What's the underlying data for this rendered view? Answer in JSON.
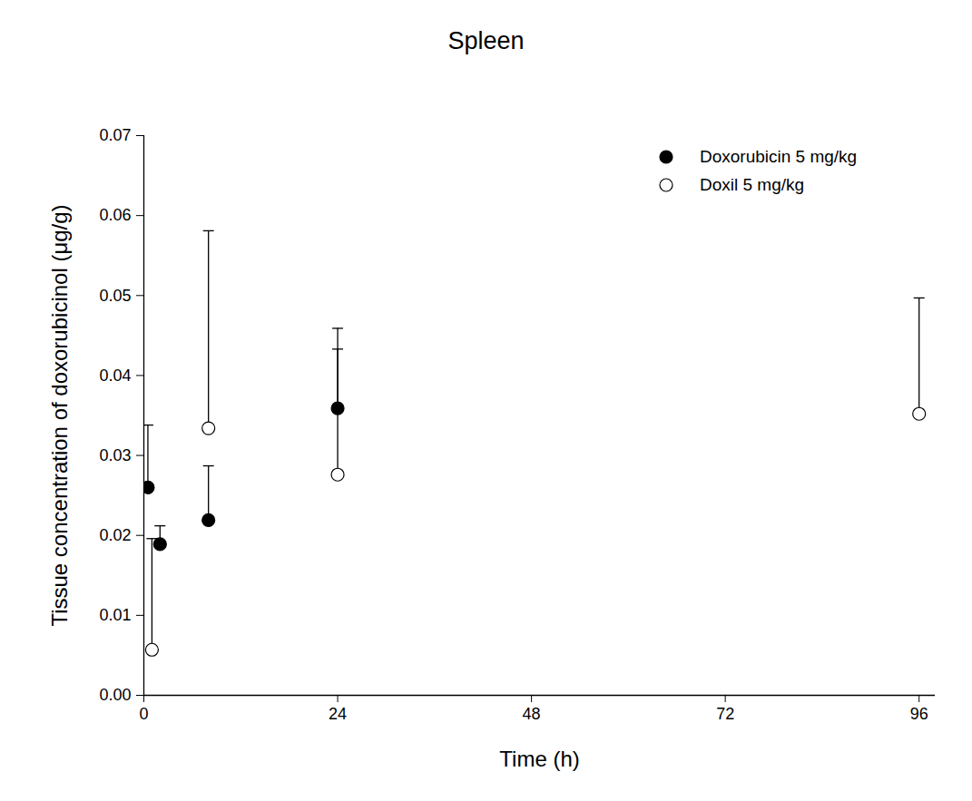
{
  "chart_data": {
    "type": "scatter",
    "title": "Spleen",
    "x_label": "Time (h)",
    "y_label": "Tissue concentration of doxorubicinol (μg/g)",
    "xlim": [
      0,
      98
    ],
    "xticks": [
      0,
      24,
      48,
      72,
      96
    ],
    "ylim": [
      0,
      0.07
    ],
    "yticks": [
      {
        "value": 0,
        "label": "0.00"
      },
      {
        "value": 0.01,
        "label": "0.01"
      },
      {
        "value": 0.02,
        "label": "0.02"
      },
      {
        "value": 0.03,
        "label": "0.03"
      },
      {
        "value": 0.04,
        "label": "0.04"
      },
      {
        "value": 0.05,
        "label": "0.05"
      },
      {
        "value": 0.06,
        "label": "0.06"
      },
      {
        "value": 0.07,
        "label": "0.07"
      }
    ],
    "legend": "top-right",
    "series": [
      {
        "name": "Doxorubicin 5 mg/kg",
        "color": "#000000",
        "marker": "filled_circle",
        "x": [
          0.5,
          2,
          8,
          24
        ],
        "values": [
          0.026,
          0.0189,
          0.0219,
          0.0359
        ],
        "errors": [
          0.0078,
          0.0023,
          0.0068,
          0.01
        ]
      },
      {
        "name": "Doxil 5 mg/kg",
        "color": "#000000",
        "marker": "open_circle",
        "x": [
          1,
          8,
          24,
          96
        ],
        "values": [
          0.0057,
          0.0334,
          0.0276,
          0.0352
        ],
        "errors": [
          0.0139,
          0.0247,
          0.0157,
          0.0145
        ]
      }
    ]
  }
}
